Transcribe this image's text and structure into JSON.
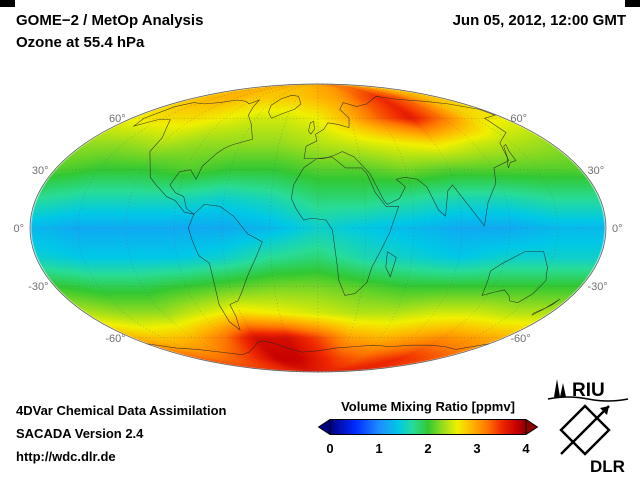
{
  "header": {
    "title_line1": "GOME−2 / MetOp Analysis",
    "title_line2": "Ozone at 55.4 hPa",
    "datetime": "Jun 05, 2012, 12:00 GMT"
  },
  "footer": {
    "line1": "4DVar Chemical Data Assimilation",
    "line2": "SACADA Version 2.4",
    "line3": "http://wdc.dlr.de"
  },
  "colorbar": {
    "label": "Volume Mixing Ratio [ppmv]",
    "ticks": [
      "0",
      "1",
      "2",
      "3",
      "4"
    ],
    "min": 0,
    "max": 4
  },
  "logos": {
    "riu": "RIU",
    "dlr": "DLR"
  },
  "chart_data": {
    "type": "heatmap",
    "title": "GOME−2 / MetOp Analysis",
    "subtitle": "Ozone at 55.4 hPa",
    "timestamp": "Jun 05, 2012, 12:00 GMT",
    "projection": "mollweide",
    "quantity": "Ozone volume mixing ratio",
    "units": "ppmv",
    "colorbar_range": [
      0,
      4
    ],
    "colorbar_ticks": [
      0,
      1,
      2,
      3,
      4
    ],
    "legend_label": "Volume Mixing Ratio [ppmv]",
    "colormap": [
      [
        0.0,
        "#000080"
      ],
      [
        0.5,
        "#0028ff"
      ],
      [
        1.0,
        "#1e8cff"
      ],
      [
        1.4,
        "#00c8e6"
      ],
      [
        1.7,
        "#28dc96"
      ],
      [
        2.0,
        "#32c832"
      ],
      [
        2.3,
        "#96dc1e"
      ],
      [
        2.6,
        "#f0f000"
      ],
      [
        2.9,
        "#ffb400"
      ],
      [
        3.2,
        "#ff7800"
      ],
      [
        3.5,
        "#f02800"
      ],
      [
        3.8,
        "#c80000"
      ],
      [
        4.0,
        "#8c0000"
      ]
    ],
    "grid_lats": [
      90,
      75,
      60,
      45,
      30,
      15,
      0,
      -15,
      -30,
      -45,
      -60,
      -75,
      -90
    ],
    "grid_lons": [
      -180,
      -150,
      -120,
      -90,
      -60,
      -30,
      0,
      30,
      60,
      90,
      120,
      150,
      180
    ],
    "values": [
      [
        2.9,
        2.9,
        2.9,
        2.9,
        2.9,
        2.9,
        3.0,
        3.0,
        3.1,
        3.1,
        3.0,
        2.9,
        2.9
      ],
      [
        2.8,
        2.9,
        2.9,
        2.8,
        2.8,
        2.8,
        2.9,
        3.0,
        3.3,
        3.5,
        3.3,
        2.9,
        2.8
      ],
      [
        2.6,
        2.7,
        2.7,
        2.6,
        2.5,
        2.5,
        2.6,
        2.9,
        3.3,
        3.6,
        3.2,
        2.7,
        2.6
      ],
      [
        2.3,
        2.3,
        2.4,
        2.3,
        2.3,
        2.3,
        2.4,
        2.5,
        2.6,
        2.7,
        2.5,
        2.4,
        2.3
      ],
      [
        2.1,
        2.0,
        2.0,
        2.1,
        2.0,
        2.0,
        2.1,
        2.1,
        2.2,
        2.1,
        2.1,
        2.1,
        2.1
      ],
      [
        1.7,
        1.6,
        1.6,
        1.6,
        1.5,
        1.6,
        1.8,
        1.8,
        1.7,
        1.6,
        1.6,
        1.7,
        1.7
      ],
      [
        1.3,
        1.2,
        1.2,
        1.2,
        1.2,
        1.3,
        1.5,
        1.4,
        1.3,
        1.2,
        1.2,
        1.3,
        1.3
      ],
      [
        1.5,
        1.4,
        1.4,
        1.4,
        1.5,
        1.7,
        1.8,
        1.6,
        1.5,
        1.4,
        1.5,
        1.5,
        1.5
      ],
      [
        2.0,
        1.9,
        1.9,
        2.0,
        2.1,
        2.2,
        2.2,
        2.1,
        2.0,
        2.0,
        2.0,
        2.0,
        2.0
      ],
      [
        2.4,
        2.3,
        2.3,
        2.5,
        2.7,
        2.6,
        2.5,
        2.4,
        2.4,
        2.5,
        2.5,
        2.4,
        2.4
      ],
      [
        2.9,
        2.8,
        2.9,
        3.2,
        3.7,
        3.7,
        3.4,
        3.0,
        2.9,
        3.0,
        3.1,
        3.0,
        2.9
      ],
      [
        3.3,
        3.2,
        3.3,
        3.5,
        3.8,
        3.8,
        3.6,
        3.4,
        3.3,
        3.4,
        3.5,
        3.4,
        3.3
      ],
      [
        3.6,
        3.6,
        3.6,
        3.6,
        3.6,
        3.6,
        3.6,
        3.6,
        3.6,
        3.6,
        3.6,
        3.6,
        3.6
      ]
    ],
    "parallels": [
      {
        "lat": 60,
        "label": "60°"
      },
      {
        "lat": 30,
        "label": "30°"
      },
      {
        "lat": 0,
        "label": "0°"
      },
      {
        "lat": -30,
        "label": "-30°"
      },
      {
        "lat": -60,
        "label": "-60°"
      }
    ],
    "meridian_step": 30,
    "coastlines": [
      [
        [
          -166,
          68
        ],
        [
          -158,
          71
        ],
        [
          -140,
          70
        ],
        [
          -125,
          71
        ],
        [
          -110,
          73
        ],
        [
          -95,
          72
        ],
        [
          -85,
          70
        ],
        [
          -80,
          73
        ],
        [
          -75,
          68
        ],
        [
          -70,
          62
        ],
        [
          -60,
          56
        ],
        [
          -52,
          47
        ],
        [
          -65,
          44
        ],
        [
          -70,
          42
        ],
        [
          -74,
          39
        ],
        [
          -80,
          32
        ],
        [
          -81,
          25
        ],
        [
          -87,
          30
        ],
        [
          -94,
          29
        ],
        [
          -97,
          22
        ],
        [
          -92,
          18
        ],
        [
          -86,
          16
        ],
        [
          -83,
          10
        ],
        [
          -78,
          7
        ],
        [
          -84,
          8
        ],
        [
          -91,
          14
        ],
        [
          -97,
          16
        ],
        [
          -106,
          22
        ],
        [
          -112,
          26
        ],
        [
          -117,
          33
        ],
        [
          -124,
          40
        ],
        [
          -125,
          48
        ],
        [
          -132,
          54
        ],
        [
          -140,
          59
        ],
        [
          -152,
          59
        ],
        [
          -163,
          55
        ],
        [
          -168,
          60
        ],
        [
          -166,
          68
        ]
      ],
      [
        [
          -78,
          7
        ],
        [
          -72,
          12
        ],
        [
          -62,
          11
        ],
        [
          -53,
          6
        ],
        [
          -44,
          -3
        ],
        [
          -35,
          -7
        ],
        [
          -39,
          -14
        ],
        [
          -47,
          -25
        ],
        [
          -53,
          -33
        ],
        [
          -58,
          -38
        ],
        [
          -65,
          -40
        ],
        [
          -65,
          -47
        ],
        [
          -69,
          -55
        ],
        [
          -73,
          -50
        ],
        [
          -73,
          -40
        ],
        [
          -71,
          -33
        ],
        [
          -70,
          -25
        ],
        [
          -70,
          -18
        ],
        [
          -76,
          -14
        ],
        [
          -79,
          -6
        ],
        [
          -81,
          0
        ],
        [
          -78,
          7
        ]
      ],
      [
        [
          -45,
          60
        ],
        [
          -52,
          64
        ],
        [
          -56,
          69
        ],
        [
          -52,
          74
        ],
        [
          -42,
          77
        ],
        [
          -30,
          76
        ],
        [
          -21,
          70
        ],
        [
          -26,
          66
        ],
        [
          -37,
          63
        ],
        [
          -45,
          60
        ]
      ],
      [
        [
          -10,
          36
        ],
        [
          -9,
          43
        ],
        [
          -1,
          46
        ],
        [
          -2,
          50
        ],
        [
          5,
          53
        ],
        [
          9,
          57
        ],
        [
          18,
          56
        ],
        [
          27,
          54
        ],
        [
          30,
          60
        ],
        [
          24,
          66
        ],
        [
          32,
          71
        ],
        [
          45,
          68
        ],
        [
          60,
          70
        ],
        [
          73,
          73
        ],
        [
          90,
          76
        ],
        [
          105,
          74
        ],
        [
          120,
          73
        ],
        [
          140,
          72
        ],
        [
          160,
          70
        ],
        [
          178,
          66
        ],
        [
          178,
          62
        ],
        [
          161,
          60
        ],
        [
          157,
          51
        ],
        [
          141,
          45
        ],
        [
          135,
          35
        ],
        [
          121,
          31
        ],
        [
          117,
          23
        ],
        [
          108,
          13
        ],
        [
          104,
          1
        ],
        [
          98,
          8
        ],
        [
          92,
          16
        ],
        [
          88,
          22
        ],
        [
          84,
          19
        ],
        [
          80,
          6
        ],
        [
          76,
          9
        ],
        [
          71,
          21
        ],
        [
          66,
          25
        ],
        [
          58,
          26
        ],
        [
          52,
          25
        ],
        [
          57,
          21
        ],
        [
          52,
          15
        ],
        [
          44,
          12
        ],
        [
          42,
          14
        ],
        [
          35,
          28
        ],
        [
          32,
          31
        ],
        [
          26,
          37
        ],
        [
          18,
          40
        ],
        [
          12,
          38
        ],
        [
          4,
          36
        ],
        [
          -5,
          36
        ],
        [
          -10,
          36
        ]
      ],
      [
        [
          -17,
          15
        ],
        [
          -16,
          22
        ],
        [
          -10,
          31
        ],
        [
          -1,
          36
        ],
        [
          10,
          37
        ],
        [
          19,
          31
        ],
        [
          30,
          31
        ],
        [
          33,
          28
        ],
        [
          37,
          18
        ],
        [
          43,
          11
        ],
        [
          51,
          11
        ],
        [
          45,
          -2
        ],
        [
          40,
          -11
        ],
        [
          35,
          -20
        ],
        [
          33,
          -28
        ],
        [
          26,
          -34
        ],
        [
          19,
          -35
        ],
        [
          14,
          -27
        ],
        [
          12,
          -17
        ],
        [
          9,
          -1
        ],
        [
          5,
          4
        ],
        [
          -4,
          5
        ],
        [
          -9,
          4
        ],
        [
          -14,
          10
        ],
        [
          -17,
          15
        ]
      ],
      [
        [
          113,
          -22
        ],
        [
          114,
          -27
        ],
        [
          116,
          -35
        ],
        [
          124,
          -33
        ],
        [
          129,
          -32
        ],
        [
          135,
          -35
        ],
        [
          139,
          -38
        ],
        [
          146,
          -39
        ],
        [
          151,
          -34
        ],
        [
          153,
          -27
        ],
        [
          149,
          -20
        ],
        [
          143,
          -12
        ],
        [
          136,
          -12
        ],
        [
          131,
          -12
        ],
        [
          125,
          -15
        ],
        [
          119,
          -18
        ],
        [
          113,
          -22
        ]
      ],
      [
        [
          44,
          -12
        ],
        [
          50,
          -15
        ],
        [
          48,
          -25
        ],
        [
          44,
          -20
        ],
        [
          44,
          -12
        ]
      ],
      [
        [
          131,
          31
        ],
        [
          135,
          34
        ],
        [
          140,
          35
        ],
        [
          141,
          40
        ],
        [
          144,
          44
        ],
        [
          141,
          43
        ],
        [
          136,
          37
        ],
        [
          132,
          33
        ],
        [
          131,
          31
        ]
      ],
      [
        [
          -6,
          50
        ],
        [
          -3,
          53
        ],
        [
          -4,
          58
        ],
        [
          -7,
          57
        ],
        [
          -8,
          52
        ],
        [
          -6,
          50
        ]
      ],
      [
        [
          167,
          -45
        ],
        [
          171,
          -42
        ],
        [
          174,
          -37
        ],
        [
          173,
          -40
        ],
        [
          168,
          -46
        ],
        [
          167,
          -45
        ]
      ],
      [
        [
          -180,
          -64
        ],
        [
          -160,
          -67
        ],
        [
          -140,
          -68
        ],
        [
          -120,
          -70
        ],
        [
          -100,
          -72
        ],
        [
          -85,
          -70
        ],
        [
          -70,
          -66
        ],
        [
          -62,
          -63
        ],
        [
          -55,
          -62
        ],
        [
          -45,
          -64
        ],
        [
          -35,
          -67
        ],
        [
          -20,
          -70
        ],
        [
          0,
          -69
        ],
        [
          20,
          -67
        ],
        [
          40,
          -66
        ],
        [
          60,
          -65
        ],
        [
          80,
          -66
        ],
        [
          100,
          -65
        ],
        [
          120,
          -65
        ],
        [
          140,
          -66
        ],
        [
          160,
          -68
        ],
        [
          180,
          -64
        ]
      ]
    ]
  }
}
